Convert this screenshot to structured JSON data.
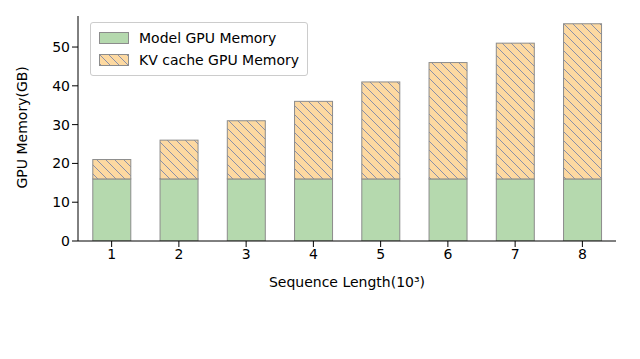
{
  "chart_data": {
    "type": "bar",
    "stacked": true,
    "x_label": "Sequence Length(10³)",
    "y_label": "GPU Memory(GB)",
    "categories": [
      "1",
      "2",
      "3",
      "4",
      "5",
      "6",
      "7",
      "8"
    ],
    "series": [
      {
        "name": "Model GPU Memory",
        "color": "#b5d9ae",
        "values": [
          16,
          16,
          16,
          16,
          16,
          16,
          16,
          16
        ]
      },
      {
        "name": "KV cache GPU Memory",
        "color": "#fdd9a1",
        "values": [
          5,
          10,
          15,
          20,
          25,
          30,
          35,
          40
        ]
      }
    ],
    "ylim": [
      0,
      58
    ],
    "yticks": [
      0,
      10,
      20,
      30,
      40,
      50
    ],
    "legend": "upper left"
  }
}
